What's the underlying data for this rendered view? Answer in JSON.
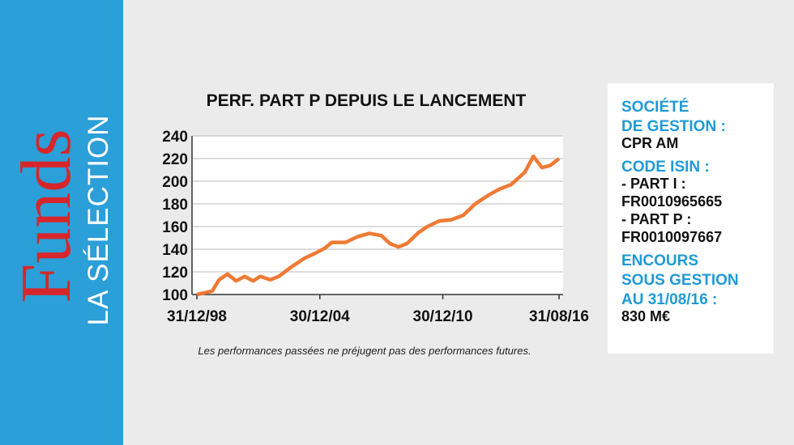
{
  "sidebar": {
    "brand": "Funds",
    "subtitle": "LA SÉLECTION"
  },
  "chart_data": {
    "type": "line",
    "title": "PERF. PART P DEPUIS LE LANCEMENT",
    "x": [
      "31/12/98",
      "30/09/99",
      "31/01/00",
      "30/06/00",
      "30/11/00",
      "30/04/01",
      "30/09/01",
      "31/01/02",
      "31/07/02",
      "31/12/02",
      "31/07/03",
      "31/03/04",
      "31/10/04",
      "31/03/05",
      "31/07/05",
      "31/03/06",
      "31/10/06",
      "31/05/07",
      "31/12/07",
      "31/05/08",
      "31/10/08",
      "31/03/09",
      "31/10/09",
      "31/03/10",
      "31/10/10",
      "31/05/11",
      "31/12/11",
      "31/07/12",
      "28/02/13",
      "30/09/13",
      "30/04/14",
      "31/12/14",
      "31/05/15",
      "31/10/15",
      "31/03/16",
      "31/08/16"
    ],
    "values": [
      100,
      103,
      113,
      118,
      112,
      116,
      112,
      116,
      113,
      116,
      124,
      132,
      137,
      141,
      146,
      146,
      151,
      154,
      152,
      145,
      142,
      145,
      155,
      160,
      165,
      166,
      170,
      180,
      187,
      193,
      197,
      208,
      222,
      212,
      214,
      220
    ],
    "color": "#ef7a35",
    "xlim": [
      "31/12/98",
      "31/08/16"
    ],
    "xticks": [
      "31/12/98",
      "30/12/04",
      "30/12/10",
      "31/08/16"
    ],
    "ylim": [
      100,
      240
    ],
    "yticks": [
      100,
      120,
      140,
      160,
      180,
      200,
      220,
      240
    ],
    "grid": true,
    "note": "Les performances passées ne préjugent pas des performances futures."
  },
  "info": {
    "sections": [
      {
        "label": [
          "SOCIÉTÉ",
          "DE GESTION :"
        ],
        "value": [
          "CPR AM"
        ]
      },
      {
        "label": [
          "CODE ISIN :"
        ],
        "value": [
          "- PART I :",
          "FR0010965665",
          "- PART P :",
          "FR0010097667"
        ]
      },
      {
        "label": [
          "ENCOURS",
          "SOUS GESTION",
          "AU 31/08/16 :"
        ],
        "value": [
          "830 M€"
        ]
      }
    ]
  }
}
